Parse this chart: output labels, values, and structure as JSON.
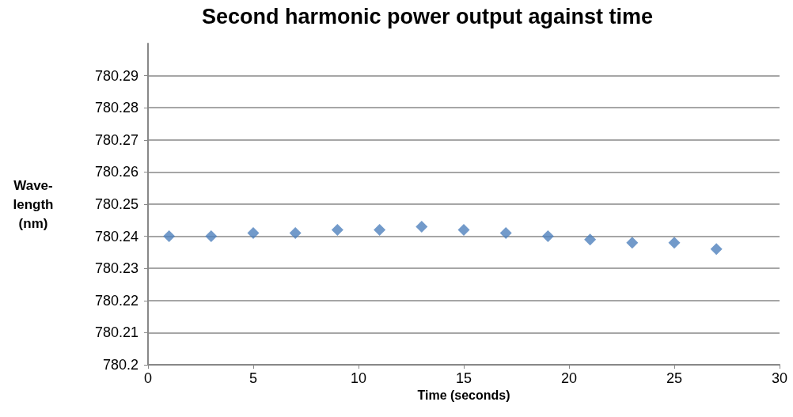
{
  "chart_data": {
    "type": "scatter",
    "title": "Second harmonic power output against time",
    "xlabel": "Time (seconds)",
    "ylabel": "Wave-\nlength\n(nm)",
    "x": [
      1,
      3,
      5,
      7,
      9,
      11,
      13,
      15,
      17,
      19,
      21,
      23,
      25,
      27
    ],
    "series": [
      {
        "color": "#4f81bd",
        "values": [
          780.24,
          780.24,
          780.241,
          780.241,
          780.242,
          780.242,
          780.243,
          780.242,
          780.241,
          780.24,
          780.239,
          780.238,
          780.238,
          780.236
        ]
      }
    ],
    "xlim": [
      0,
      30
    ],
    "xticks": [
      0,
      5,
      10,
      15,
      20,
      25,
      30
    ],
    "ylim": [
      780.2,
      780.3
    ],
    "yticks": [
      780.2,
      780.21,
      780.22,
      780.23,
      780.24,
      780.25,
      780.26,
      780.27,
      780.28,
      780.29
    ],
    "grid": "y",
    "marker": "diamond"
  }
}
